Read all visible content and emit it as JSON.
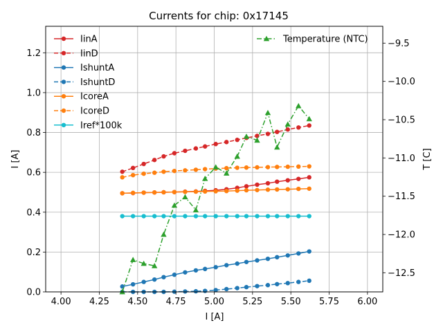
{
  "chart_data": {
    "type": "line",
    "title": "Currents for chip: 0x17145",
    "xlabel": "I [A]",
    "ylabel": "I [A]",
    "y2label": "T [C]",
    "xlim": [
      3.9,
      6.1
    ],
    "ylim": [
      0.0,
      1.333
    ],
    "y2lim": [
      -12.75,
      -9.28
    ],
    "xticks": [
      4.0,
      4.25,
      4.5,
      4.75,
      5.0,
      5.25,
      5.5,
      5.75,
      6.0
    ],
    "xtick_labels": [
      "4.00",
      "4.25",
      "4.50",
      "4.75",
      "5.00",
      "5.25",
      "5.50",
      "5.75",
      "6.00"
    ],
    "yticks": [
      0.0,
      0.2,
      0.4,
      0.6,
      0.8,
      1.0,
      1.2
    ],
    "ytick_labels": [
      "0.0",
      "0.2",
      "0.4",
      "0.6",
      "0.8",
      "1.0",
      "1.2"
    ],
    "y2ticks": [
      -12.5,
      -12.0,
      -11.5,
      -11.0,
      -10.5,
      -10.0,
      -9.5
    ],
    "y2tick_labels": [
      "−12.5",
      "−12.0",
      "−11.5",
      "−11.0",
      "−10.5",
      "−10.0",
      "−9.5"
    ],
    "grid": true,
    "x": [
      4.4,
      4.47,
      4.54,
      4.61,
      4.67,
      4.74,
      4.81,
      4.88,
      4.94,
      5.01,
      5.08,
      5.15,
      5.21,
      5.28,
      5.35,
      5.41,
      5.48,
      5.55,
      5.62
    ],
    "series": [
      {
        "name": "IinA",
        "axis": "left",
        "color": "#d62728",
        "dash": "solid",
        "marker": "circle",
        "values": [
          0.495,
          0.496,
          0.498,
          0.499,
          0.5,
          0.501,
          0.503,
          0.504,
          0.507,
          0.51,
          0.515,
          0.522,
          0.53,
          0.538,
          0.545,
          0.553,
          0.56,
          0.567,
          0.575
        ]
      },
      {
        "name": "IinD",
        "axis": "left",
        "color": "#d62728",
        "dash": "dashed",
        "marker": "circle",
        "values": [
          0.603,
          0.622,
          0.642,
          0.662,
          0.68,
          0.696,
          0.708,
          0.72,
          0.73,
          0.742,
          0.752,
          0.763,
          0.773,
          0.783,
          0.793,
          0.803,
          0.815,
          0.825,
          0.835
        ]
      },
      {
        "name": "IshuntA",
        "axis": "left",
        "color": "#1f77b4",
        "dash": "solid",
        "marker": "circle",
        "values": [
          0.027,
          0.038,
          0.05,
          0.062,
          0.074,
          0.086,
          0.098,
          0.108,
          0.115,
          0.124,
          0.134,
          0.142,
          0.15,
          0.158,
          0.166,
          0.174,
          0.183,
          0.193,
          0.203
        ]
      },
      {
        "name": "IshuntD",
        "axis": "left",
        "color": "#1f77b4",
        "dash": "dashed",
        "marker": "circle",
        "values": [
          0.0,
          0.0,
          0.0,
          0.0,
          0.0,
          0.001,
          0.002,
          0.003,
          0.005,
          0.009,
          0.014,
          0.019,
          0.024,
          0.029,
          0.034,
          0.039,
          0.044,
          0.05,
          0.056
        ]
      },
      {
        "name": "IcoreA",
        "axis": "left",
        "color": "#ff7f0e",
        "dash": "solid",
        "marker": "circle",
        "values": [
          0.495,
          0.497,
          0.498,
          0.499,
          0.5,
          0.501,
          0.502,
          0.503,
          0.504,
          0.505,
          0.506,
          0.508,
          0.51,
          0.511,
          0.513,
          0.514,
          0.515,
          0.517,
          0.518
        ]
      },
      {
        "name": "IcoreD",
        "axis": "left",
        "color": "#ff7f0e",
        "dash": "dashed",
        "marker": "circle",
        "values": [
          0.575,
          0.586,
          0.593,
          0.598,
          0.603,
          0.607,
          0.61,
          0.613,
          0.616,
          0.619,
          0.621,
          0.623,
          0.624,
          0.625,
          0.626,
          0.627,
          0.628,
          0.629,
          0.63
        ]
      },
      {
        "name": "Iref*100k",
        "axis": "left",
        "color": "#17becf",
        "dash": "solid",
        "marker": "circle",
        "values": [
          0.38,
          0.38,
          0.38,
          0.38,
          0.38,
          0.38,
          0.38,
          0.38,
          0.38,
          0.38,
          0.38,
          0.38,
          0.38,
          0.38,
          0.38,
          0.38,
          0.38,
          0.38,
          0.38
        ]
      },
      {
        "name": "Temperature (NTC)",
        "axis": "right",
        "color": "#2ca02c",
        "dash": "dashdot",
        "marker": "triangle",
        "values": [
          -12.75,
          -12.33,
          -12.38,
          -12.41,
          -12.0,
          -11.62,
          -11.51,
          -11.68,
          -11.27,
          -11.12,
          -11.2,
          -10.98,
          -10.72,
          -10.77,
          -10.41,
          -10.86,
          -10.56,
          -10.32,
          -10.49
        ]
      }
    ],
    "legend_left": [
      "IinA",
      "IinD",
      "IshuntA",
      "IshuntD",
      "IcoreA",
      "IcoreD",
      "Iref*100k"
    ],
    "legend_right": [
      "Temperature (NTC)"
    ],
    "legend_placement": "upper-left and upper-right"
  }
}
